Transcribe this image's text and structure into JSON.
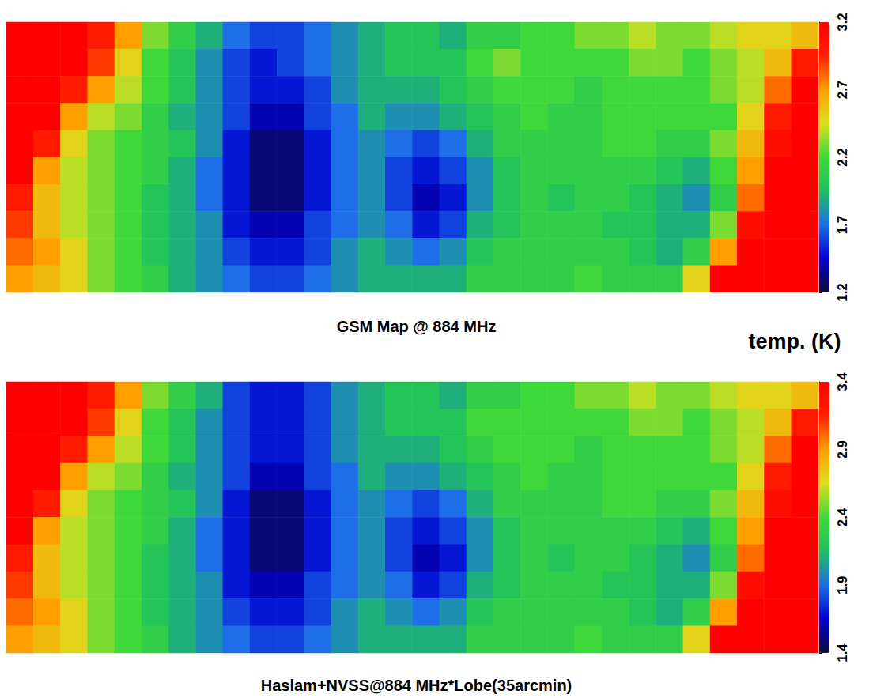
{
  "chart_data": [
    {
      "type": "heatmap",
      "caption": "GSM Map @ 884 MHz",
      "tick_labels": false,
      "colors": [
        "#0d0d3a",
        "#0000d0",
        "#1e6ee8",
        "#1fbf5f",
        "#3fd83a",
        "#d8e020",
        "#ffa000",
        "#ff2000",
        "#ff0000"
      ],
      "colorbar": {
        "range": [
          1.2,
          3.2
        ],
        "ticks": [
          1.2,
          1.7,
          2.2,
          2.7,
          3.2
        ]
      },
      "cells": [
        [
          3.2,
          3.2,
          3.2,
          3.0,
          2.7,
          2.3,
          2.1,
          1.9,
          1.7,
          1.6,
          1.6,
          1.7,
          1.8,
          1.9,
          2.0,
          2.0,
          1.9,
          2.1,
          2.1,
          2.2,
          2.2,
          2.3,
          2.3,
          2.4,
          2.3,
          2.3,
          2.4,
          2.5,
          2.5,
          2.6
        ],
        [
          3.2,
          3.2,
          3.2,
          2.9,
          2.5,
          2.2,
          2.0,
          1.8,
          1.6,
          1.5,
          1.6,
          1.7,
          1.8,
          1.9,
          2.0,
          2.0,
          2.0,
          2.2,
          2.3,
          2.2,
          2.2,
          2.2,
          2.2,
          2.3,
          2.3,
          2.2,
          2.3,
          2.4,
          2.6,
          3.0
        ],
        [
          3.2,
          3.2,
          3.0,
          2.7,
          2.4,
          2.2,
          2.0,
          1.8,
          1.6,
          1.5,
          1.5,
          1.6,
          1.8,
          1.9,
          1.9,
          1.9,
          2.0,
          2.1,
          2.2,
          2.2,
          2.2,
          2.1,
          2.2,
          2.2,
          2.2,
          2.2,
          2.3,
          2.4,
          2.8,
          3.2
        ],
        [
          3.2,
          3.2,
          2.7,
          2.4,
          2.3,
          2.1,
          1.9,
          1.8,
          1.6,
          1.4,
          1.4,
          1.6,
          1.7,
          1.9,
          1.8,
          1.8,
          1.9,
          2.0,
          2.1,
          2.2,
          2.1,
          2.1,
          2.2,
          2.2,
          2.2,
          2.2,
          2.2,
          2.5,
          3.0,
          3.2
        ],
        [
          3.2,
          3.0,
          2.5,
          2.3,
          2.2,
          2.1,
          2.0,
          1.8,
          1.5,
          1.3,
          1.3,
          1.5,
          1.7,
          1.8,
          1.7,
          1.6,
          1.7,
          1.9,
          2.1,
          2.1,
          2.1,
          2.1,
          2.2,
          2.2,
          2.1,
          2.1,
          2.3,
          2.6,
          3.1,
          3.2
        ],
        [
          3.2,
          2.7,
          2.4,
          2.3,
          2.2,
          2.1,
          1.9,
          1.7,
          1.5,
          1.3,
          1.3,
          1.5,
          1.7,
          1.8,
          1.6,
          1.5,
          1.6,
          1.8,
          2.0,
          2.1,
          2.1,
          2.1,
          2.1,
          2.1,
          2.0,
          1.9,
          2.2,
          2.7,
          3.2,
          3.2
        ],
        [
          3.0,
          2.6,
          2.4,
          2.3,
          2.2,
          2.0,
          1.9,
          1.7,
          1.5,
          1.3,
          1.3,
          1.5,
          1.7,
          1.8,
          1.6,
          1.4,
          1.5,
          1.8,
          2.0,
          2.1,
          2.0,
          2.1,
          2.1,
          2.0,
          1.9,
          1.8,
          2.1,
          2.8,
          3.2,
          3.2
        ],
        [
          2.9,
          2.6,
          2.4,
          2.3,
          2.2,
          2.0,
          1.9,
          1.8,
          1.5,
          1.4,
          1.4,
          1.6,
          1.7,
          1.8,
          1.7,
          1.5,
          1.6,
          1.9,
          2.0,
          2.1,
          2.1,
          2.1,
          2.0,
          2.0,
          1.9,
          1.9,
          2.3,
          3.1,
          3.2,
          3.2
        ],
        [
          2.8,
          2.7,
          2.5,
          2.3,
          2.2,
          2.0,
          1.9,
          1.8,
          1.6,
          1.5,
          1.5,
          1.6,
          1.8,
          1.9,
          1.8,
          1.7,
          1.8,
          2.0,
          2.1,
          2.1,
          2.1,
          2.1,
          2.1,
          2.0,
          1.9,
          2.1,
          2.7,
          3.2,
          3.2,
          3.2
        ],
        [
          2.7,
          2.6,
          2.5,
          2.3,
          2.2,
          2.1,
          1.9,
          1.8,
          1.7,
          1.6,
          1.6,
          1.7,
          1.8,
          1.9,
          1.9,
          1.9,
          1.9,
          2.1,
          2.1,
          2.1,
          2.1,
          2.2,
          2.1,
          2.1,
          2.1,
          2.5,
          3.2,
          3.2,
          3.2,
          3.2
        ]
      ]
    },
    {
      "type": "heatmap",
      "caption": "Haslam+NVSS@884 MHz*Lobe(35arcmin)",
      "tick_labels": false,
      "colors": [
        "#0d0d3a",
        "#0000d0",
        "#1e6ee8",
        "#1fbf5f",
        "#3fd83a",
        "#d8e020",
        "#ffa000",
        "#ff2000",
        "#ff0000"
      ],
      "colorbar": {
        "range": [
          1.4,
          3.4
        ],
        "ticks": [
          1.4,
          1.9,
          2.4,
          2.9,
          3.4
        ],
        "title": "temp. (K)"
      },
      "cells": [
        [
          3.4,
          3.4,
          3.4,
          3.2,
          2.9,
          2.5,
          2.3,
          2.1,
          1.8,
          1.7,
          1.7,
          1.8,
          2.0,
          2.1,
          2.2,
          2.2,
          2.1,
          2.3,
          2.3,
          2.4,
          2.4,
          2.5,
          2.5,
          2.6,
          2.5,
          2.5,
          2.6,
          2.7,
          2.7,
          2.8
        ],
        [
          3.4,
          3.4,
          3.4,
          3.1,
          2.7,
          2.4,
          2.2,
          2.0,
          1.8,
          1.7,
          1.7,
          1.8,
          2.0,
          2.1,
          2.2,
          2.2,
          2.2,
          2.4,
          2.4,
          2.4,
          2.4,
          2.4,
          2.4,
          2.5,
          2.5,
          2.4,
          2.5,
          2.6,
          2.8,
          3.2
        ],
        [
          3.4,
          3.4,
          3.2,
          2.9,
          2.6,
          2.4,
          2.2,
          2.0,
          1.8,
          1.7,
          1.7,
          1.8,
          2.0,
          2.1,
          2.1,
          2.1,
          2.2,
          2.3,
          2.4,
          2.4,
          2.4,
          2.3,
          2.4,
          2.4,
          2.4,
          2.4,
          2.5,
          2.6,
          3.0,
          3.4
        ],
        [
          3.4,
          3.4,
          2.9,
          2.6,
          2.5,
          2.3,
          2.1,
          2.0,
          1.8,
          1.6,
          1.6,
          1.8,
          1.9,
          2.1,
          2.0,
          2.0,
          2.1,
          2.2,
          2.3,
          2.4,
          2.3,
          2.3,
          2.4,
          2.4,
          2.4,
          2.4,
          2.4,
          2.7,
          3.2,
          3.4
        ],
        [
          3.4,
          3.2,
          2.7,
          2.5,
          2.4,
          2.3,
          2.2,
          2.0,
          1.7,
          1.5,
          1.5,
          1.7,
          1.9,
          2.0,
          1.9,
          1.8,
          1.9,
          2.1,
          2.3,
          2.3,
          2.3,
          2.3,
          2.4,
          2.4,
          2.3,
          2.3,
          2.5,
          2.8,
          3.3,
          3.4
        ],
        [
          3.4,
          2.9,
          2.6,
          2.5,
          2.4,
          2.3,
          2.1,
          1.9,
          1.7,
          1.5,
          1.5,
          1.7,
          1.9,
          2.0,
          1.8,
          1.7,
          1.8,
          2.0,
          2.2,
          2.3,
          2.3,
          2.3,
          2.3,
          2.3,
          2.2,
          2.1,
          2.4,
          2.9,
          3.4,
          3.4
        ],
        [
          3.2,
          2.8,
          2.6,
          2.5,
          2.4,
          2.2,
          2.1,
          1.9,
          1.7,
          1.5,
          1.5,
          1.7,
          1.9,
          2.0,
          1.8,
          1.6,
          1.7,
          2.0,
          2.2,
          2.3,
          2.2,
          2.3,
          2.3,
          2.2,
          2.1,
          2.0,
          2.3,
          3.0,
          3.4,
          3.4
        ],
        [
          3.1,
          2.8,
          2.6,
          2.5,
          2.4,
          2.2,
          2.1,
          2.0,
          1.7,
          1.6,
          1.6,
          1.8,
          1.9,
          2.0,
          1.9,
          1.7,
          1.8,
          2.1,
          2.2,
          2.3,
          2.3,
          2.3,
          2.2,
          2.2,
          2.1,
          2.1,
          2.5,
          3.3,
          3.4,
          3.4
        ],
        [
          3.0,
          2.9,
          2.7,
          2.5,
          2.4,
          2.2,
          2.1,
          2.0,
          1.8,
          1.7,
          1.7,
          1.8,
          2.0,
          2.1,
          2.0,
          1.9,
          2.0,
          2.2,
          2.3,
          2.3,
          2.3,
          2.3,
          2.3,
          2.2,
          2.1,
          2.3,
          2.9,
          3.4,
          3.4,
          3.4
        ],
        [
          2.9,
          2.8,
          2.7,
          2.5,
          2.4,
          2.3,
          2.1,
          2.0,
          1.9,
          1.8,
          1.8,
          1.9,
          2.0,
          2.1,
          2.1,
          2.1,
          2.1,
          2.3,
          2.3,
          2.3,
          2.3,
          2.4,
          2.3,
          2.3,
          2.3,
          2.7,
          3.4,
          3.4,
          3.4,
          3.4
        ]
      ]
    }
  ]
}
